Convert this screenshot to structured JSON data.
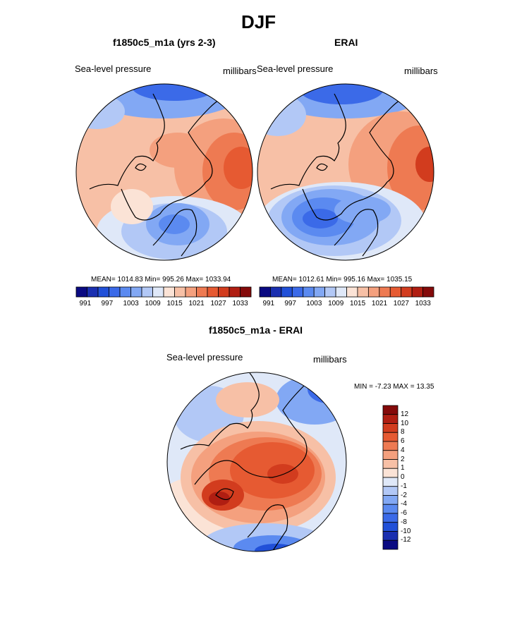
{
  "title": "DJF",
  "panels": [
    {
      "title": "f1850c5_m1a (yrs 2-3)",
      "left_label": "Sea-level pressure",
      "right_label": "millibars",
      "stats": "MEAN= 1014.83  Min= 995.26  Max= 1033.94"
    },
    {
      "title": "ERAI",
      "left_label": "Sea-level pressure",
      "right_label": "millibars",
      "stats": "MEAN= 1012.61  Min= 995.16  Max= 1035.15"
    },
    {
      "title": "f1850c5_m1a - ERAI",
      "left_label": "Sea-level pressure",
      "right_label": "millibars",
      "stats": "MIN =  -7.23 MAX =  13.35"
    }
  ],
  "abs_colorbar": {
    "colors": [
      "#0a0a82",
      "#1a2fb0",
      "#2150d8",
      "#3b6ae8",
      "#5b8af0",
      "#82a8f4",
      "#b2c8f6",
      "#dfe8f8",
      "#fbe3d6",
      "#f7c0a6",
      "#f4a07e",
      "#ee7a52",
      "#e65a32",
      "#d23c1e",
      "#b01e12",
      "#840a0a"
    ],
    "ticks": [
      "991",
      "997",
      "1003",
      "1009",
      "1015",
      "1021",
      "1027",
      "1033"
    ]
  },
  "diff_colorbar": {
    "colors": [
      "#840a0a",
      "#b01e12",
      "#d23c1e",
      "#e65a32",
      "#ee7a52",
      "#f4a07e",
      "#f7c0a6",
      "#fbe3d6",
      "#dfe8f8",
      "#b2c8f6",
      "#82a8f4",
      "#5b8af0",
      "#3b6ae8",
      "#2150d8",
      "#1a2fb0",
      "#0a0a82"
    ],
    "ticks": [
      "12",
      "10",
      "8",
      "6",
      "4",
      "2",
      "1",
      "0",
      "-1",
      "-2",
      "-4",
      "-6",
      "-8",
      "-10",
      "-12"
    ]
  }
}
